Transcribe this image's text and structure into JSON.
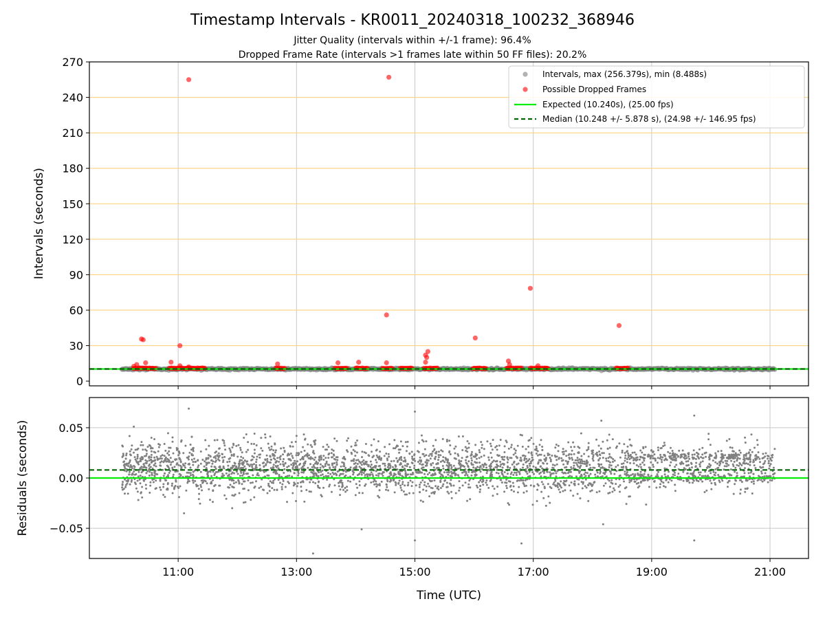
{
  "chart_data": {
    "type": "scatter",
    "title": "Timestamp Intervals - KR0011_20240318_100232_368946",
    "subtitle_lines": [
      "Jitter Quality (intervals within +/-1 frame): 96.4%",
      "Dropped Frame Rate (intervals >1 frames late within 50 FF files): 20.2%"
    ],
    "xlabel": "Time (UTC)",
    "x_ticks": [
      "11:00",
      "13:00",
      "15:00",
      "17:00",
      "19:00",
      "21:00"
    ],
    "x_tick_hours": [
      11,
      13,
      15,
      17,
      19,
      21
    ],
    "x_range_hours": [
      9.5,
      21.65
    ],
    "data_start_hours": 10.05,
    "data_end_hours": 21.08,
    "top_panel": {
      "ylabel": "Intervals (seconds)",
      "ylim": [
        -4,
        270
      ],
      "y_ticks": [
        0,
        30,
        60,
        90,
        120,
        150,
        180,
        210,
        240,
        270
      ],
      "grid": true,
      "legend": {
        "placement": "top-right",
        "entries": [
          "Intervals, max (256.379s), min (8.488s)",
          "Possible Dropped Frames",
          "Expected (10.240s), (25.00 fps)",
          "Median (10.248 +/- 5.878 s), (24.98 +/- 146.95 fps)"
        ]
      },
      "expected_interval": 10.24,
      "median_interval": 10.248,
      "colors": {
        "intervals": "#808080",
        "dropped": "#ff0000",
        "expected": "#00ee00",
        "median": "#006400",
        "hgrid": "#ffd27f",
        "vgrid": "#c8c8c8"
      },
      "dropped_frames": [
        [
          10.25,
          12.5
        ],
        [
          10.3,
          14.0
        ],
        [
          10.38,
          35.6
        ],
        [
          10.41,
          35.0
        ],
        [
          10.45,
          15.5
        ],
        [
          10.88,
          16.0
        ],
        [
          11.03,
          30.0
        ],
        [
          11.03,
          13.0
        ],
        [
          11.18,
          255.0
        ],
        [
          11.18,
          12.0
        ],
        [
          12.68,
          14.5
        ],
        [
          13.7,
          15.5
        ],
        [
          14.05,
          16.0
        ],
        [
          14.52,
          15.5
        ],
        [
          14.52,
          56.0
        ],
        [
          14.56,
          257.0
        ],
        [
          15.18,
          22.0
        ],
        [
          15.2,
          20.0
        ],
        [
          15.22,
          25.0
        ],
        [
          15.18,
          16.0
        ],
        [
          16.02,
          36.5
        ],
        [
          16.58,
          17.0
        ],
        [
          16.6,
          14.0
        ],
        [
          16.95,
          78.5
        ],
        [
          17.08,
          13.0
        ],
        [
          18.45,
          47.0
        ]
      ],
      "dropped_clusters": [
        [
          10.25,
          10.62
        ],
        [
          10.85,
          11.45
        ],
        [
          12.65,
          12.8
        ],
        [
          13.65,
          13.85
        ],
        [
          14.0,
          14.2
        ],
        [
          14.45,
          14.62
        ],
        [
          14.75,
          14.95
        ],
        [
          15.15,
          15.38
        ],
        [
          15.98,
          16.2
        ],
        [
          16.55,
          16.8
        ],
        [
          16.95,
          17.25
        ],
        [
          18.4,
          18.6
        ]
      ]
    },
    "bottom_panel": {
      "ylabel": "Residuals (seconds)",
      "ylim": [
        -0.08,
        0.08
      ],
      "y_ticks": [
        0.05,
        0.0,
        -0.05
      ],
      "y_tick_labels": [
        "0.05",
        "0.00",
        "−0.05"
      ],
      "expected_residual": 0.0,
      "median_residual": 0.008,
      "outliers": [
        [
          10.25,
          0.051
        ],
        [
          11.18,
          0.069
        ],
        [
          11.1,
          -0.035
        ],
        [
          13.28,
          -0.075
        ],
        [
          14.1,
          -0.051
        ],
        [
          15.0,
          0.066
        ],
        [
          15.0,
          -0.062
        ],
        [
          16.8,
          -0.065
        ],
        [
          18.18,
          -0.046
        ],
        [
          18.15,
          0.057
        ],
        [
          19.72,
          0.062
        ],
        [
          19.72,
          -0.062
        ]
      ]
    }
  }
}
